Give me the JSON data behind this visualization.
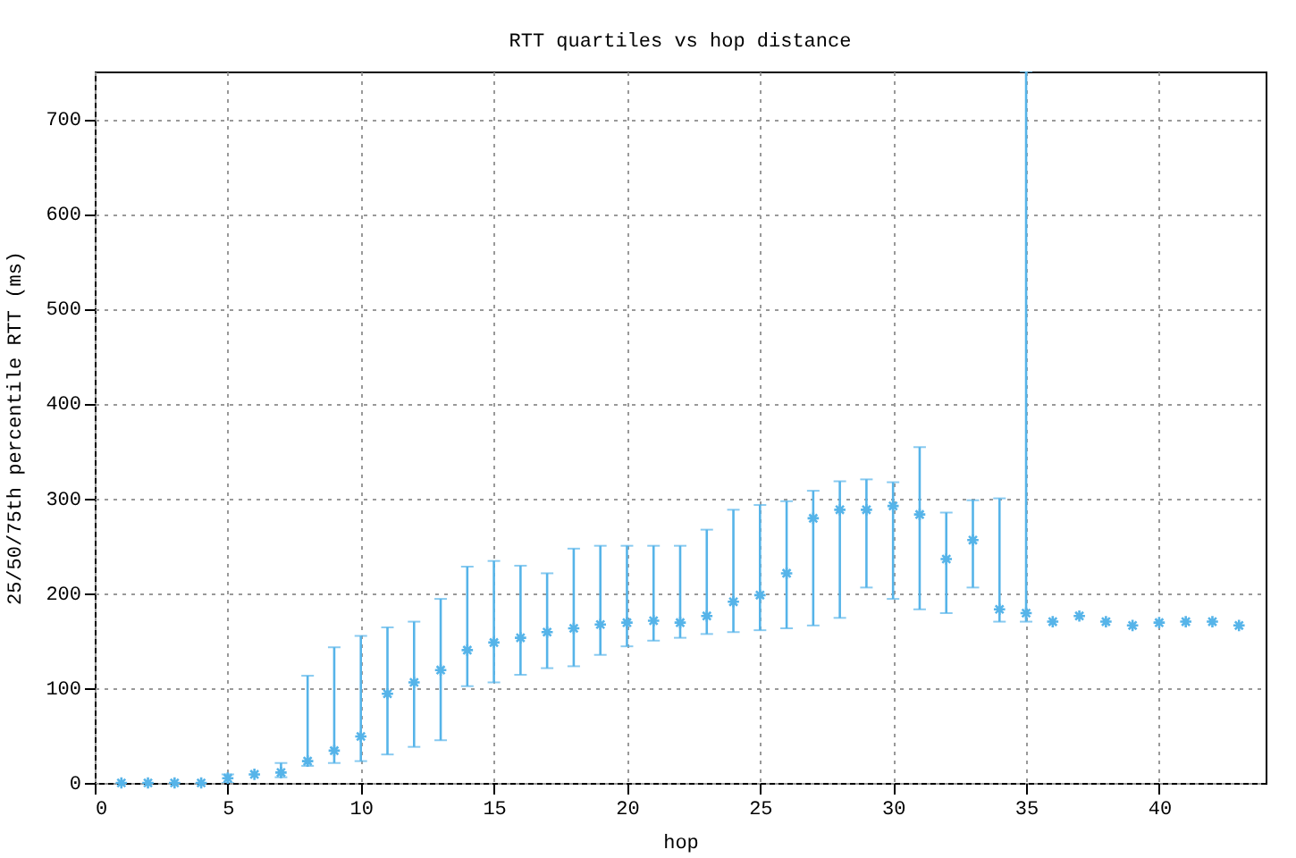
{
  "chart_data": {
    "type": "scatter",
    "title": "RTT quartiles vs hop distance",
    "xlabel": "hop",
    "ylabel": "25/50/75th percentile RTT (ms)",
    "x": [
      1,
      2,
      3,
      4,
      5,
      6,
      7,
      8,
      9,
      10,
      11,
      12,
      13,
      14,
      15,
      16,
      17,
      18,
      19,
      20,
      21,
      22,
      23,
      24,
      25,
      26,
      27,
      28,
      29,
      30,
      31,
      32,
      33,
      34,
      35,
      36,
      37,
      38,
      39,
      40,
      41,
      42,
      43
    ],
    "values": [
      0,
      0,
      0,
      0,
      5,
      9,
      11,
      23,
      34,
      49,
      94,
      106,
      119,
      140,
      148,
      153,
      159,
      163,
      167,
      169,
      171,
      169,
      176,
      191,
      198,
      221,
      279,
      288,
      288,
      292,
      283,
      236,
      256,
      183,
      179,
      170,
      176,
      170,
      166,
      169,
      170,
      170,
      166
    ],
    "errors": [
      null,
      null,
      null,
      null,
      [
        0,
        9
      ],
      null,
      [
        6,
        21
      ],
      [
        18,
        113
      ],
      [
        21,
        143
      ],
      [
        23,
        155
      ],
      [
        30,
        164
      ],
      [
        38,
        170
      ],
      [
        45,
        194
      ],
      [
        102,
        228
      ],
      [
        106,
        234
      ],
      [
        114,
        229
      ],
      [
        121,
        221
      ],
      [
        123,
        247
      ],
      [
        135,
        250
      ],
      [
        144,
        250
      ],
      [
        150,
        250
      ],
      [
        153,
        250
      ],
      [
        157,
        267
      ],
      [
        159,
        288
      ],
      [
        161,
        293
      ],
      [
        163,
        297
      ],
      [
        166,
        308
      ],
      [
        174,
        318
      ],
      [
        206,
        320
      ],
      [
        194,
        317
      ],
      [
        183,
        354
      ],
      [
        179,
        285
      ],
      [
        206,
        298
      ],
      [
        170,
        300
      ],
      [
        170,
        750
      ],
      null,
      null,
      null,
      null,
      null,
      null,
      null,
      null
    ],
    "color": "#56b4e9",
    "marker": "cross",
    "xlim": [
      0,
      44
    ],
    "ylim": [
      0,
      750
    ],
    "xticks": [
      0,
      5,
      10,
      15,
      20,
      25,
      30,
      35,
      40
    ],
    "yticks": [
      0,
      100,
      200,
      300,
      400,
      500,
      600,
      700
    ],
    "grid": true
  }
}
